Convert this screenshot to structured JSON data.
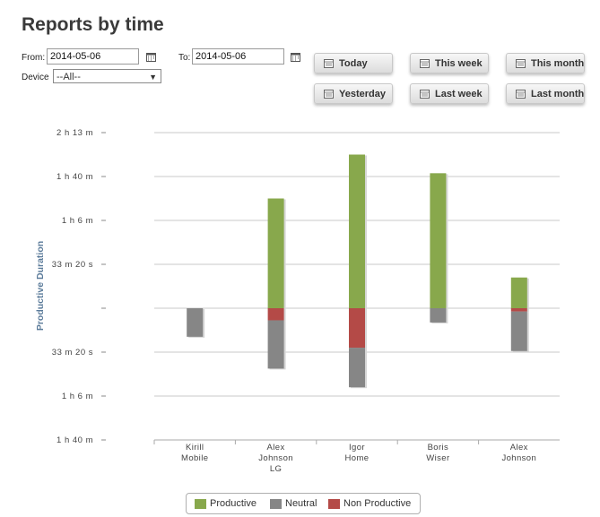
{
  "page": {
    "title": "Reports by time"
  },
  "filters": {
    "from_label": "From:",
    "from_value": "2014-05-06",
    "to_label": "To:",
    "to_value": "2014-05-06",
    "device_label": "Device",
    "device_value": "--All--"
  },
  "buttons": {
    "today": "Today",
    "this_week": "This week",
    "this_month": "This month",
    "yesterday": "Yesterday",
    "last_week": "Last week",
    "last_month": "Last month"
  },
  "colors": {
    "productive": "#88a84c",
    "neutral": "#868686",
    "non_productive": "#b44a47"
  },
  "chart_data": {
    "type": "bar",
    "stacked": true,
    "ylabel": "Productive Duration",
    "categories": [
      "Kirill\nMobile",
      "Alex\nJohnson\nLG",
      "Igor\nHome",
      "Boris\nWiser",
      "Alex\nJohnson"
    ],
    "y_ticks": [
      {
        "value": 8000,
        "label": "2 h 13 m"
      },
      {
        "value": 6000,
        "label": "1 h 40 m"
      },
      {
        "value": 4000,
        "label": "1 h 6 m"
      },
      {
        "value": 2000,
        "label": "33 m 20 s"
      },
      {
        "value": 0,
        "label": ""
      },
      {
        "value": -2000,
        "label": "33 m 20 s"
      },
      {
        "value": -4000,
        "label": "1 h 6 m"
      },
      {
        "value": -6000,
        "label": "1 h 40 m"
      }
    ],
    "ylim": [
      -6000,
      8000
    ],
    "grid": true,
    "legend_position": "bottom",
    "series": [
      {
        "name": "Productive",
        "values": [
          0,
          5000,
          7000,
          6150,
          1400
        ]
      },
      {
        "name": "Neutral",
        "values": [
          -1300,
          -2200,
          -1800,
          -650,
          -1800
        ]
      },
      {
        "name": "Non Productive",
        "values": [
          0,
          -550,
          -1800,
          0,
          -150
        ]
      }
    ]
  }
}
